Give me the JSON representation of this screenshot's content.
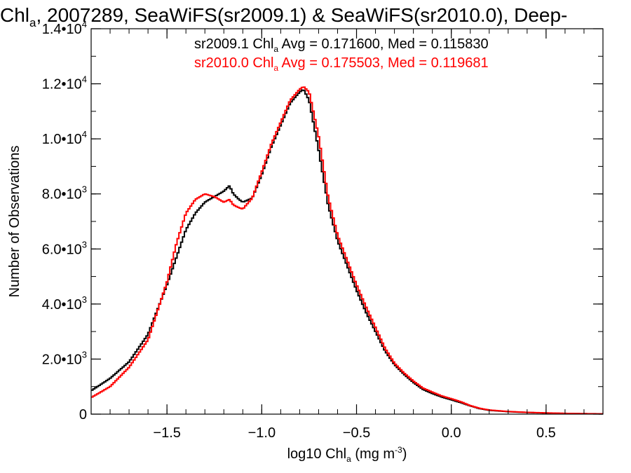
{
  "chart_data": {
    "type": "line",
    "title": {
      "pre": "Chl",
      "sub": "a",
      "post": ", 2007289, SeaWiFS(sr2009.1) & SeaWiFS(sr2010.0), Deep-"
    },
    "xlabel": {
      "pre": "log10 Chl",
      "sub": "a",
      "mid": " (mg m",
      "sup": "-3",
      "post": ")"
    },
    "ylabel": "Number of Observations",
    "xlim": [
      -1.9,
      0.8
    ],
    "ylim": [
      0,
      14000
    ],
    "x_ticks": [
      {
        "value": -1.5,
        "label": "−1.5"
      },
      {
        "value": -1.0,
        "label": "−1.0"
      },
      {
        "value": -0.5,
        "label": "−0.5"
      },
      {
        "value": 0.0,
        "label": "0.0"
      },
      {
        "value": 0.5,
        "label": "0.5"
      }
    ],
    "y_ticks": [
      {
        "value": 0,
        "base": "0",
        "exp": ""
      },
      {
        "value": 2000,
        "base": "2.0•10",
        "exp": "3"
      },
      {
        "value": 4000,
        "base": "4.0•10",
        "exp": "3"
      },
      {
        "value": 6000,
        "base": "6.0•10",
        "exp": "3"
      },
      {
        "value": 8000,
        "base": "8.0•10",
        "exp": "3"
      },
      {
        "value": 10000,
        "base": "1.0•10",
        "exp": "4"
      },
      {
        "value": 12000,
        "base": "1.2•10",
        "exp": "4"
      },
      {
        "value": 14000,
        "base": "1.4•10",
        "exp": "4"
      }
    ],
    "grid": false,
    "annotations": [
      {
        "pre": "sr2009.1 Chl",
        "sub": "a",
        "post": " Avg = 0.171600, Med = 0.115830",
        "color": "#000000"
      },
      {
        "pre": "sr2010.0 Chl",
        "sub": "a",
        "post": " Avg = 0.175503, Med = 0.119681",
        "color": "#ff0000"
      }
    ],
    "series": [
      {
        "color": "#000000",
        "x": [
          -1.9,
          -1.8,
          -1.7,
          -1.6,
          -1.5,
          -1.45,
          -1.4,
          -1.35,
          -1.3,
          -1.25,
          -1.2,
          -1.17,
          -1.15,
          -1.12,
          -1.1,
          -1.05,
          -1.0,
          -0.95,
          -0.9,
          -0.85,
          -0.8,
          -0.78,
          -0.75,
          -0.7,
          -0.65,
          -0.6,
          -0.55,
          -0.5,
          -0.45,
          -0.4,
          -0.35,
          -0.3,
          -0.25,
          -0.2,
          -0.15,
          -0.1,
          -0.05,
          0.0,
          0.05,
          0.1,
          0.15,
          0.2,
          0.3,
          0.4,
          0.5,
          0.6,
          0.7,
          0.8
        ],
        "y": [
          850,
          1300,
          1900,
          2900,
          4700,
          5700,
          6700,
          7300,
          7700,
          7900,
          8100,
          8300,
          8000,
          7800,
          7700,
          7850,
          8700,
          9700,
          10500,
          11300,
          11700,
          11800,
          11400,
          9600,
          7600,
          6300,
          5400,
          4500,
          3700,
          3000,
          2300,
          1800,
          1450,
          1150,
          900,
          750,
          620,
          520,
          420,
          300,
          200,
          140,
          90,
          60,
          40,
          25,
          15,
          10
        ]
      },
      {
        "color": "#ff0000",
        "x": [
          -1.9,
          -1.8,
          -1.7,
          -1.6,
          -1.5,
          -1.45,
          -1.4,
          -1.35,
          -1.3,
          -1.25,
          -1.2,
          -1.17,
          -1.15,
          -1.12,
          -1.1,
          -1.05,
          -1.0,
          -0.95,
          -0.9,
          -0.85,
          -0.8,
          -0.78,
          -0.75,
          -0.7,
          -0.65,
          -0.6,
          -0.55,
          -0.5,
          -0.45,
          -0.4,
          -0.35,
          -0.3,
          -0.25,
          -0.2,
          -0.15,
          -0.1,
          -0.05,
          0.0,
          0.05,
          0.1,
          0.15,
          0.2,
          0.3,
          0.4,
          0.5,
          0.6,
          0.7,
          0.8
        ],
        "y": [
          600,
          1000,
          1700,
          2700,
          4800,
          6200,
          7300,
          7800,
          8000,
          7900,
          7700,
          7800,
          7600,
          7500,
          7450,
          7850,
          8800,
          9800,
          10600,
          11400,
          11800,
          11900,
          11700,
          10100,
          7900,
          6500,
          5600,
          4700,
          3900,
          3150,
          2400,
          1850,
          1500,
          1200,
          950,
          800,
          660,
          560,
          450,
          310,
          210,
          150,
          95,
          65,
          45,
          28,
          18,
          12
        ]
      }
    ]
  }
}
